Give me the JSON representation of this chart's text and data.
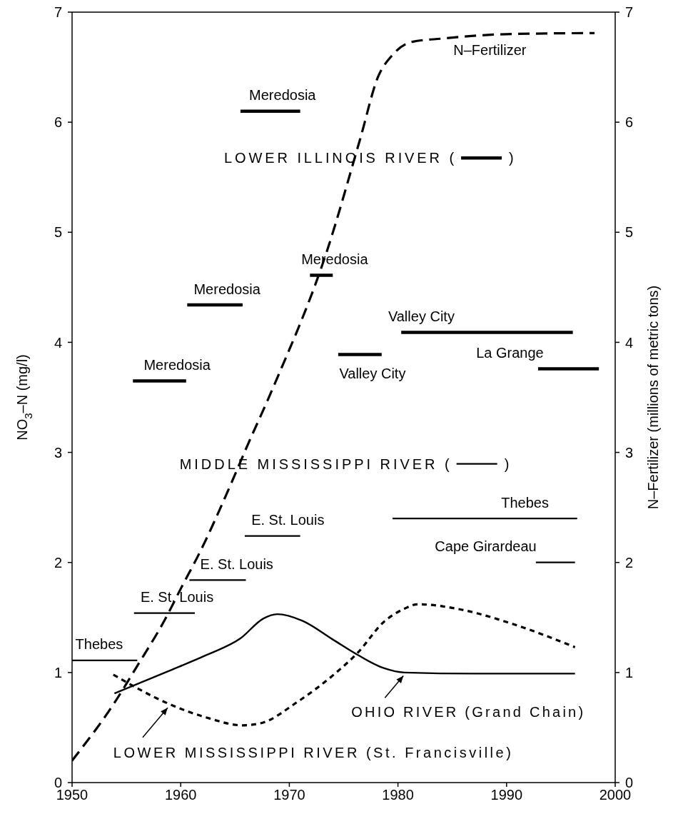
{
  "chart_data": {
    "type": "line",
    "xlabel": null,
    "ylabel": "NO$_{3}$–N (mg/l)",
    "y2label": "N–Fertilizer (millions of metric tons)",
    "xlim": [
      1950,
      2000
    ],
    "xticks": [
      1950,
      1960,
      1970,
      1980,
      1990,
      2000
    ],
    "ylim": [
      0,
      7
    ],
    "yticks": [
      0,
      1,
      2,
      3,
      4,
      5,
      6,
      7
    ],
    "y2lim": [
      0,
      7
    ],
    "y2ticks": [
      0,
      1,
      2,
      3,
      4,
      5,
      6,
      7
    ],
    "marker": "none",
    "series": [
      {
        "name": "LOWER ILLINOIS RIVER ( )",
        "color": "#000000",
        "line_style": "solid",
        "x": [
          1955.6,
          1960.5,
          null,
          1960.6,
          1965.7,
          null,
          1965.5,
          1971.0,
          null,
          1971.9,
          1974.0,
          null,
          1974.5,
          1978.5,
          null,
          1980.3,
          1996.1,
          null,
          1992.9,
          1998.5
        ],
        "values": [
          3.65,
          3.65,
          null,
          4.34,
          4.34,
          null,
          6.1,
          6.1,
          null,
          4.61,
          4.61,
          null,
          3.89,
          3.89,
          null,
          4.09,
          4.09,
          null,
          3.76,
          3.76
        ]
      },
      {
        "name": "MIDDLE MISSISSIPPI RIVER ( )",
        "color": "#000000",
        "line_style": "solid",
        "x": [
          1950,
          1956.0,
          null,
          1955.7,
          1961.3,
          null,
          1960.8,
          1966.0,
          null,
          1965.9,
          1971.0,
          null,
          1979.5,
          1996.5,
          null,
          1992.7,
          1996.3
        ],
        "values": [
          1.11,
          1.11,
          null,
          1.54,
          1.54,
          null,
          1.84,
          1.84,
          null,
          2.24,
          2.24,
          null,
          2.4,
          2.4,
          null,
          2.0,
          2.0
        ]
      },
      {
        "color": "#000000",
        "line_style": "solid",
        "x": [
          1953.9,
          1958.8,
          1962.4,
          1965.5,
          1967.6,
          1968.9,
          1971.2,
          1974.0,
          1976.3,
          1978.7,
          1980.6,
          1987.1,
          1996.3
        ],
        "values": [
          0.81,
          1.01,
          1.16,
          1.31,
          1.49,
          1.53,
          1.47,
          1.3,
          1.16,
          1.04,
          1.0,
          0.99,
          0.99
        ]
      },
      {
        "color": "#000000",
        "line_style": "dotted",
        "x": [
          1953.8,
          1958.8,
          1962.4,
          1965.7,
          1967.4,
          1970.7,
          1974.2,
          1976.3,
          1978.7,
          1980.6,
          1981.8,
          1985.9,
          1990.6,
          1996.3
        ],
        "values": [
          0.98,
          0.72,
          0.59,
          0.52,
          0.54,
          0.73,
          0.99,
          1.18,
          1.46,
          1.58,
          1.62,
          1.57,
          1.44,
          1.23
        ]
      },
      {
        "color": "#000000",
        "line_style": "dashed",
        "axis": "y2",
        "x": [
          1950,
          1953.8,
          1956.0,
          1958.6,
          1960.1,
          1961.7,
          1964.7,
          1966.0,
          1968.6,
          1973.5,
          1976.5,
          1978.2,
          1979.4,
          1981.3,
          1984.1,
          1990.0,
          1998.1
        ],
        "values": [
          0.2,
          0.71,
          1.06,
          1.49,
          1.78,
          2.08,
          2.73,
          3.03,
          3.61,
          4.84,
          5.84,
          6.42,
          6.6,
          6.73,
          6.76,
          6.8,
          6.81
        ]
      }
    ],
    "annotations": [
      {
        "text": "Meredosia",
        "x": 1955.6,
        "y": 3.65
      },
      {
        "text": "Meredosia",
        "x": 1960.6,
        "y": 4.34
      },
      {
        "text": "Meredosia",
        "x": 1965.5,
        "y": 6.1
      },
      {
        "text": "Meredosia",
        "x": 1971.9,
        "y": 4.61
      },
      {
        "text": "Valley City",
        "x": 1974.5,
        "y": 3.89
      },
      {
        "text": "Valley City",
        "x": 1980.3,
        "y": 4.09
      },
      {
        "text": "La Grange",
        "x": 1992.9,
        "y": 3.76
      },
      {
        "text": "E. St. Louis",
        "x": 1955.7,
        "y": 1.54
      },
      {
        "text": "E. St. Louis",
        "x": 1960.8,
        "y": 1.84
      },
      {
        "text": "E. St. Louis",
        "x": 1965.9,
        "y": 2.24
      },
      {
        "text": "Thebes",
        "x": 1950,
        "y": 1.11
      },
      {
        "text": "Thebes",
        "x": 1996.5,
        "y": 2.4
      },
      {
        "text": "Cape Girardeau",
        "x": 1992.7,
        "y": 2.0
      },
      {
        "text": "N–Fertilizer",
        "x": 1986,
        "y": 6.78
      },
      {
        "text": "LOWER MISSISSIPPI RIVER (St. Francisville)",
        "x": 1958.8,
        "y": 0.68
      },
      {
        "text": "OHIO RIVER (Grand Chain)",
        "x": 1980.5,
        "y": 0.97
      }
    ]
  }
}
